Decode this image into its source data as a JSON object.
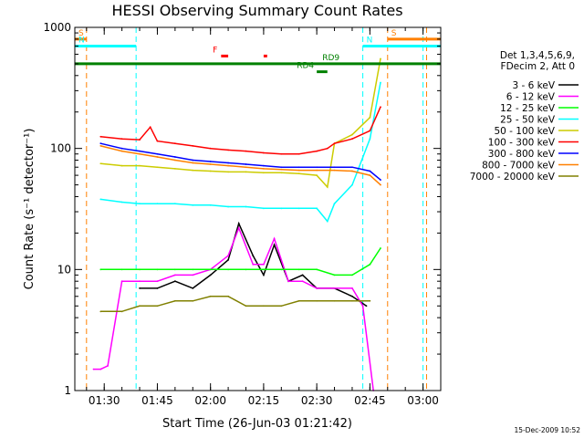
{
  "chart_data": {
    "type": "line",
    "title": "HESSI Observing Summary Count Rates",
    "xlabel": "Start Time (26-Jun-03 01:21:42)",
    "ylabel": "Count Rate (s⁻¹ detector⁻¹)",
    "yscale": "log",
    "ylim": [
      1,
      1000
    ],
    "xlim": [
      "01:21:42",
      "03:05:00"
    ],
    "x_ticks": [
      "01:30",
      "01:45",
      "02:00",
      "02:15",
      "02:30",
      "02:45",
      "03:00"
    ],
    "y_ticks": [
      "1",
      "10",
      "100",
      "1000"
    ],
    "footer_date": "15-Dec-2009 10:52",
    "legend_header": [
      "Det 1,3,4,5,6,9,",
      "FDecim 2, Att 0"
    ],
    "series": [
      {
        "name": "3 - 6 keV",
        "color": "#000000",
        "x": [
          "01:40",
          "01:45",
          "01:50",
          "01:55",
          "02:00",
          "02:05",
          "02:08",
          "02:12",
          "02:15",
          "02:18",
          "02:22",
          "02:26",
          "02:30",
          "02:35",
          "02:40",
          "02:44"
        ],
        "y": [
          7,
          7,
          8,
          7,
          9,
          12,
          24,
          13,
          9,
          16,
          8,
          9,
          7,
          7,
          6,
          5
        ]
      },
      {
        "name": "6 - 12 keV",
        "color": "#ff00ff",
        "x": [
          "01:27",
          "01:29",
          "01:31",
          "01:35",
          "01:40",
          "01:45",
          "01:50",
          "01:55",
          "02:00",
          "02:05",
          "02:08",
          "02:12",
          "02:15",
          "02:18",
          "02:22",
          "02:26",
          "02:30",
          "02:35",
          "02:40",
          "02:43",
          "02:46"
        ],
        "y": [
          1.5,
          1.5,
          1.6,
          8,
          8,
          8,
          9,
          9,
          10,
          13,
          22,
          11,
          11,
          18,
          8,
          8,
          7,
          7,
          7,
          5,
          1
        ]
      },
      {
        "name": "12 - 25 keV",
        "color": "#00ff00",
        "x": [
          "01:29",
          "01:35",
          "01:40",
          "01:45",
          "01:50",
          "01:55",
          "02:00",
          "02:05",
          "02:10",
          "02:15",
          "02:20",
          "02:25",
          "02:30",
          "02:35",
          "02:40",
          "02:45",
          "02:48"
        ],
        "y": [
          10,
          10,
          10,
          10,
          10,
          10,
          10,
          10,
          10,
          10,
          10,
          10,
          10,
          9,
          9,
          11,
          15
        ]
      },
      {
        "name": "25 - 50 keV",
        "color": "#00ffff",
        "x": [
          "01:29",
          "01:35",
          "01:40",
          "01:45",
          "01:50",
          "01:55",
          "02:00",
          "02:05",
          "02:10",
          "02:15",
          "02:20",
          "02:25",
          "02:30",
          "02:33",
          "02:35",
          "02:40",
          "02:45",
          "02:48"
        ],
        "y": [
          38,
          36,
          35,
          35,
          35,
          34,
          34,
          33,
          33,
          32,
          32,
          32,
          32,
          25,
          35,
          50,
          120,
          350
        ]
      },
      {
        "name": "50 - 100 keV",
        "color": "#cccc00",
        "x": [
          "01:29",
          "01:35",
          "01:40",
          "01:45",
          "01:50",
          "01:55",
          "02:00",
          "02:05",
          "02:10",
          "02:15",
          "02:20",
          "02:25",
          "02:30",
          "02:33",
          "02:35",
          "02:40",
          "02:45",
          "02:48"
        ],
        "y": [
          75,
          72,
          72,
          70,
          68,
          66,
          65,
          64,
          64,
          63,
          63,
          62,
          60,
          48,
          110,
          130,
          180,
          550
        ]
      },
      {
        "name": "100 - 300 keV",
        "color": "#ff0000",
        "x": [
          "01:29",
          "01:35",
          "01:40",
          "01:43",
          "01:45",
          "01:50",
          "01:55",
          "02:00",
          "02:05",
          "02:10",
          "02:15",
          "02:20",
          "02:25",
          "02:30",
          "02:33",
          "02:35",
          "02:40",
          "02:45",
          "02:48"
        ],
        "y": [
          125,
          120,
          118,
          150,
          115,
          110,
          105,
          100,
          97,
          95,
          92,
          90,
          90,
          95,
          100,
          110,
          120,
          140,
          220
        ]
      },
      {
        "name": "300 - 800 keV",
        "color": "#0000ff",
        "x": [
          "01:29",
          "01:35",
          "01:40",
          "01:45",
          "01:50",
          "01:55",
          "02:00",
          "02:05",
          "02:10",
          "02:15",
          "02:20",
          "02:25",
          "02:30",
          "02:35",
          "02:40",
          "02:45",
          "02:48"
        ],
        "y": [
          110,
          100,
          95,
          90,
          85,
          80,
          78,
          76,
          74,
          72,
          70,
          70,
          70,
          70,
          70,
          65,
          55
        ]
      },
      {
        "name": "800 - 7000 keV",
        "color": "#ff8000",
        "x": [
          "01:29",
          "01:35",
          "01:40",
          "01:45",
          "01:50",
          "01:55",
          "02:00",
          "02:05",
          "02:10",
          "02:15",
          "02:20",
          "02:25",
          "02:30",
          "02:35",
          "02:40",
          "02:45",
          "02:48"
        ],
        "y": [
          105,
          95,
          90,
          85,
          80,
          76,
          74,
          72,
          70,
          68,
          67,
          66,
          66,
          66,
          65,
          60,
          50
        ]
      },
      {
        "name": "7000 - 20000 keV",
        "color": "#808000",
        "x": [
          "01:29",
          "01:35",
          "01:40",
          "01:45",
          "01:50",
          "01:55",
          "02:00",
          "02:05",
          "02:10",
          "02:15",
          "02:20",
          "02:25",
          "02:30",
          "02:35",
          "02:40",
          "02:45"
        ],
        "y": [
          4.5,
          4.5,
          5,
          5,
          5.5,
          5.5,
          6,
          6,
          5,
          5,
          5,
          5.5,
          5.5,
          5.5,
          5.5,
          5.5
        ]
      }
    ],
    "flags": [
      {
        "label": "S",
        "color": "#ff8000",
        "x": [
          "01:21:42",
          "01:25"
        ],
        "y": 800
      },
      {
        "label": "S",
        "color": "#ff8000",
        "x": [
          "02:50",
          "03:05"
        ],
        "y": 800
      },
      {
        "label": "N",
        "color": "#00ffff",
        "x": [
          "01:21:42",
          "01:39"
        ],
        "y": 700
      },
      {
        "label": "N",
        "color": "#00ffff",
        "x": [
          "02:43",
          "03:05"
        ],
        "y": 700
      },
      {
        "label": "F",
        "color": "#ff0000",
        "x": [
          "02:03",
          "02:05"
        ],
        "y": 580
      },
      {
        "label": "",
        "color": "#ff0000",
        "x": [
          "02:15",
          "02:16"
        ],
        "y": 580
      },
      {
        "label": "RD9",
        "color": "#008000",
        "x": [
          "01:21:42",
          "03:05"
        ],
        "y": 500
      },
      {
        "label": "RD4",
        "color": "#008000",
        "x": [
          "02:30",
          "02:33"
        ],
        "y": 430
      }
    ],
    "vlines": [
      {
        "x": "01:25",
        "color": "#ff8000"
      },
      {
        "x": "01:39",
        "color": "#00ffff"
      },
      {
        "x": "02:43",
        "color": "#00ffff"
      },
      {
        "x": "02:50",
        "color": "#ff8000"
      },
      {
        "x": "03:00",
        "color": "#00ffff"
      },
      {
        "x": "03:01",
        "color": "#ff8000"
      }
    ]
  }
}
